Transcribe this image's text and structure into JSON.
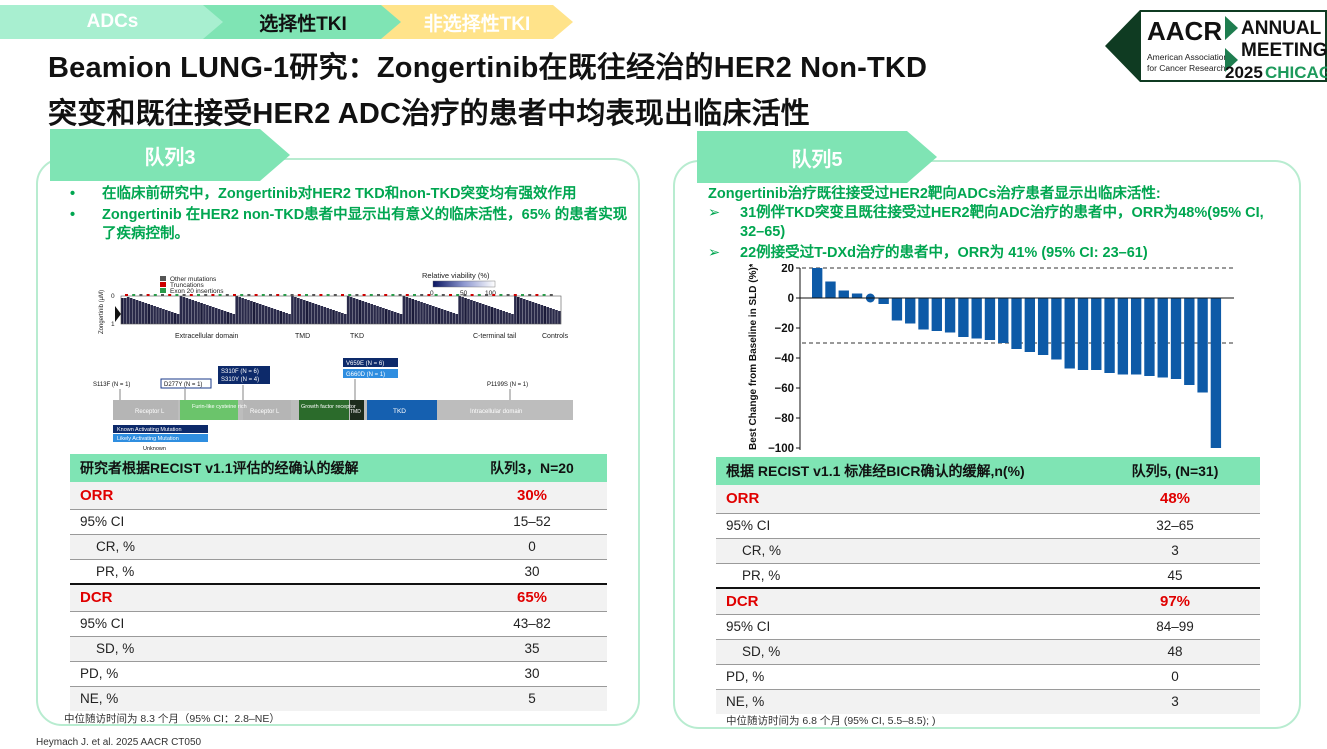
{
  "top_tabs": [
    {
      "label": "ADCs",
      "color": "#a8efd0"
    },
    {
      "label": "选择性TKI",
      "color": "#7fe4b4"
    },
    {
      "label": "非选择性TKI",
      "color": "#ffe38a"
    }
  ],
  "title_line1": "Beamion LUNG-1研究：Zongertinib在既往经治的HER2 Non-TKD",
  "title_line2": "突变和既往接受HER2 ADC治疗的患者中均表现出临床活性",
  "logo": {
    "brand": "AACR",
    "sub1": "American Association",
    "sub2": "for Cancer Research",
    "annual": "ANNUAL",
    "meeting": "MEETING",
    "year": "2025",
    "city": "CHICAGO"
  },
  "left": {
    "tab": "队列3",
    "bullets": [
      "在临床前研究中，Zongertinib对HER2 TKD和non-TKD突变均有强效作用",
      "Zongertinib 在HER2 non-TKD患者中显示出有意义的临床活性，65% 的患者实现了疾病控制。"
    ],
    "figure": {
      "legend": [
        "Other mutations",
        "Truncations",
        "Exon 20 insertions"
      ],
      "viability_label": "Relative viability (%)",
      "viability_ticks": [
        "0",
        "50",
        "100"
      ],
      "y_axis": "Zongertinib (µM)",
      "y_ticks": [
        "0",
        "1"
      ],
      "domains_bottom": [
        "Extracellular domain",
        "TMD",
        "TKD",
        "C-terminal tail",
        "Controls"
      ],
      "mutation_labels": [
        "S113F (N = 1)",
        "D277Y (N = 1)",
        "S310F (N = 6)",
        "S310Y (N = 4)",
        "V659E (N = 6)",
        "G660D (N = 1)",
        "P1199S (N = 1)"
      ],
      "protein_domains": [
        "Receptor L",
        "Furin-like cysteine rich",
        "Receptor L",
        "Growth factor receptor",
        "TMD",
        "TKD",
        "Intracellular domain"
      ],
      "key": [
        "Known Activating Mutation",
        "Likely Activating Mutation",
        "Unknown"
      ]
    },
    "table": {
      "header": [
        "研究者根据RECIST v1.1评估的经确认的缓解",
        "队列3，N=20"
      ],
      "rows": [
        {
          "label": "ORR",
          "value": "30%"
        },
        {
          "label": "95% CI",
          "value": "15–52"
        },
        {
          "label": "CR, %",
          "value": "0"
        },
        {
          "label": "PR, %",
          "value": "30"
        },
        {
          "label": "DCR",
          "value": "65%"
        },
        {
          "label": "95% CI",
          "value": "43–82"
        },
        {
          "label": "SD, %",
          "value": "35"
        },
        {
          "label": "PD, %",
          "value": "30"
        },
        {
          "label": "NE, %",
          "value": "5"
        }
      ]
    },
    "footnote": "中位随访时间为  8.3 个月（95% CI：2.8–NE）"
  },
  "right": {
    "tab": "队列5",
    "bullets": [
      "Zongertinib治疗既往接受过HER2靶向ADCs治疗患者显示出临床活性:",
      "31例伴TKD突变且既往接受过HER2靶向ADC治疗的患者中，ORR为48%(95% CI, 32–65)",
      "22例接受过T-DXd治疗的患者中，ORR为 41% (95% CI: 23–61)"
    ],
    "bullet_marker": "➢",
    "table": {
      "header": [
        "根据 RECIST v1.1 标准经BICR确认的缓解,n(%)",
        "队列5, (N=31)"
      ],
      "rows": [
        {
          "label": "ORR",
          "value": "48%"
        },
        {
          "label": "95% CI",
          "value": "32–65"
        },
        {
          "label": "CR, %",
          "value": "3"
        },
        {
          "label": "PR, %",
          "value": "45"
        },
        {
          "label": "DCR",
          "value": "97%"
        },
        {
          "label": "95% CI",
          "value": "84–99"
        },
        {
          "label": "SD, %",
          "value": "48"
        },
        {
          "label": "PD, %",
          "value": "0"
        },
        {
          "label": "NE, %",
          "value": "3"
        }
      ]
    },
    "footnote": "中位随访时间为  6.8 个月 (95% CI, 5.5–8.5); )"
  },
  "chart_data": {
    "type": "bar",
    "title": "",
    "ylabel": "Best Change from Baseline in SLD (%)*",
    "xlabel": "",
    "ylim": [
      -100,
      20
    ],
    "yticks": [
      20,
      0,
      -20,
      -40,
      -60,
      -80,
      -100
    ],
    "reference_lines": [
      20,
      -30
    ],
    "values": [
      20,
      11,
      5,
      3,
      0,
      -4,
      -15,
      -17,
      -21,
      -22,
      -23,
      -26,
      -27,
      -28,
      -30,
      -34,
      -36,
      -38,
      -41,
      -47,
      -48,
      -48,
      -50,
      -51,
      -51,
      -52,
      -53,
      -54,
      -58,
      -63,
      -100
    ],
    "marker_index": 4,
    "bar_color": "#0d5aa7"
  },
  "citation": "Heymach J. et al. 2025 AACR CT050"
}
